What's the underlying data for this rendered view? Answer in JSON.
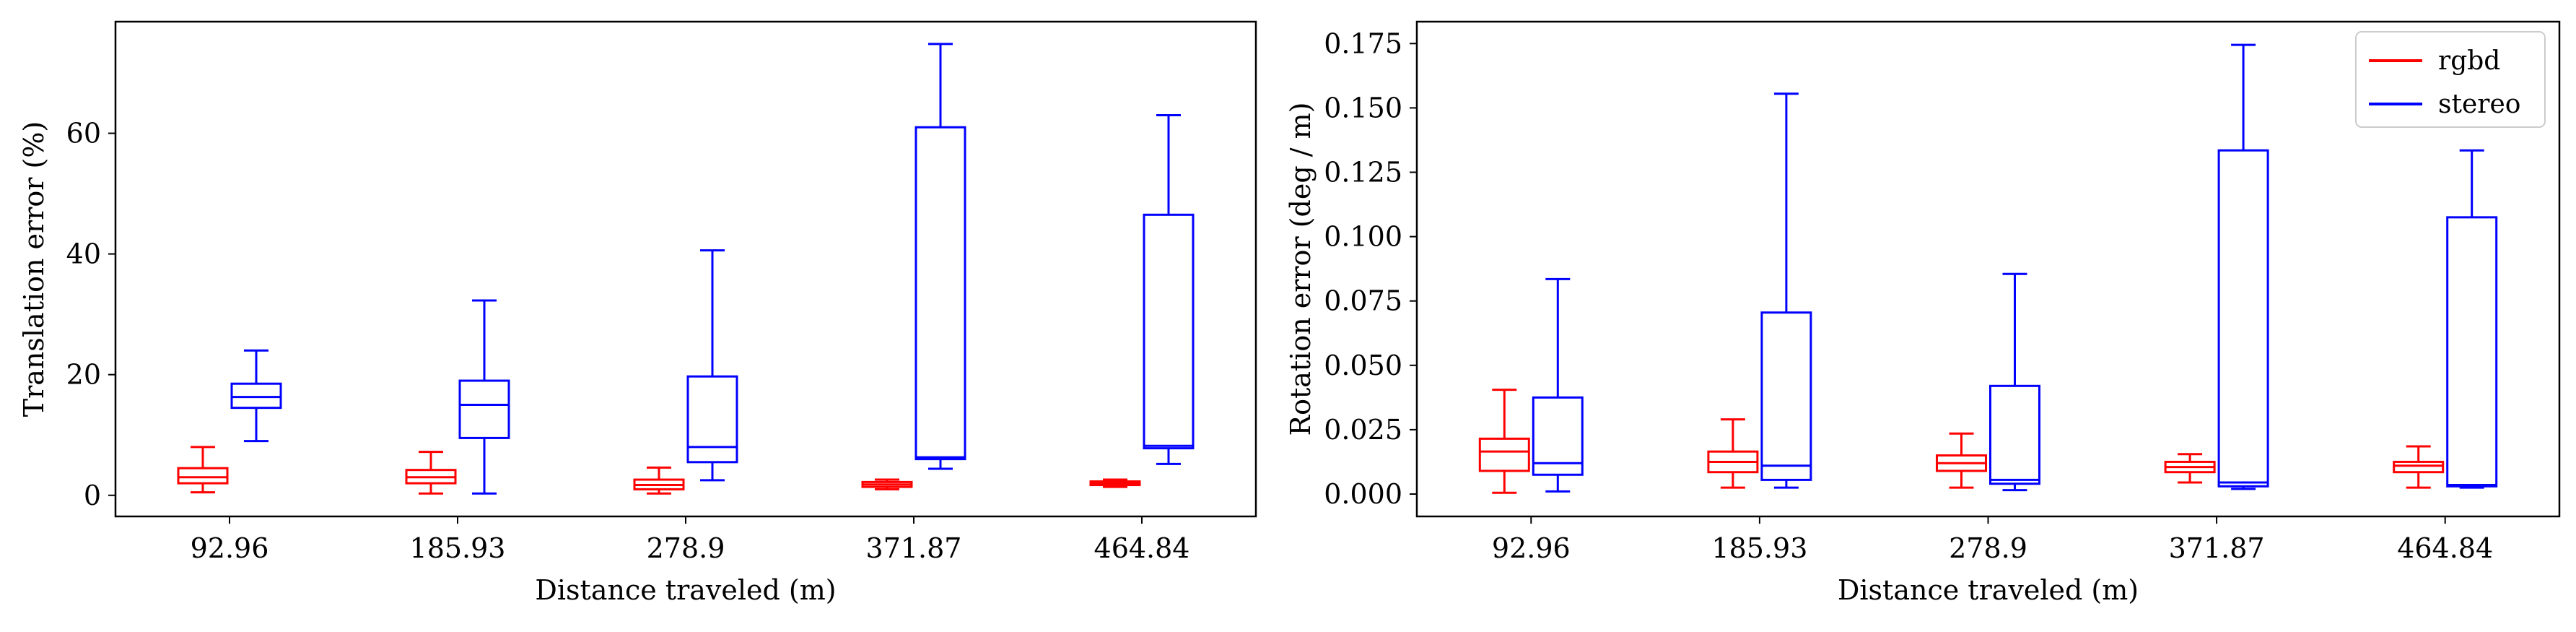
{
  "colors": {
    "rgbd": "#ff0000",
    "stereo": "#0000ff"
  },
  "chart_data": [
    {
      "type": "box",
      "xlabel": "Distance traveled (m)",
      "ylabel": "Translation error (%)",
      "categories": [
        "92.96",
        "185.93",
        "278.9",
        "371.87",
        "464.84"
      ],
      "ylim": [
        -3.5,
        78.5
      ],
      "yticks": [
        0,
        20,
        40,
        60
      ],
      "ytick_labels": [
        "0",
        "20",
        "40",
        "60"
      ],
      "grid": false,
      "legend": null,
      "series": [
        {
          "name": "rgbd",
          "color_key": "rgbd",
          "boxes": [
            {
              "whislo": 0.5,
              "q1": 2.0,
              "med": 3.0,
              "q3": 4.5,
              "whishi": 8.0
            },
            {
              "whislo": 0.3,
              "q1": 2.0,
              "med": 3.0,
              "q3": 4.2,
              "whishi": 7.2
            },
            {
              "whislo": 0.3,
              "q1": 1.0,
              "med": 1.7,
              "q3": 2.6,
              "whishi": 4.6
            },
            {
              "whislo": 1.0,
              "q1": 1.4,
              "med": 1.8,
              "q3": 2.2,
              "whishi": 2.6
            },
            {
              "whislo": 1.4,
              "q1": 1.7,
              "med": 2.0,
              "q3": 2.3,
              "whishi": 2.6
            }
          ]
        },
        {
          "name": "stereo",
          "color_key": "stereo",
          "boxes": [
            {
              "whislo": 9.0,
              "q1": 14.5,
              "med": 16.3,
              "q3": 18.5,
              "whishi": 24.0
            },
            {
              "whislo": 0.3,
              "q1": 9.5,
              "med": 15.0,
              "q3": 19.0,
              "whishi": 32.3
            },
            {
              "whislo": 2.5,
              "q1": 5.5,
              "med": 8.0,
              "q3": 19.7,
              "whishi": 40.6
            },
            {
              "whislo": 4.4,
              "q1": 6.0,
              "med": 6.3,
              "q3": 61.0,
              "whishi": 74.8
            },
            {
              "whislo": 5.2,
              "q1": 7.8,
              "med": 8.2,
              "q3": 46.5,
              "whishi": 63.0
            }
          ]
        }
      ]
    },
    {
      "type": "box",
      "xlabel": "Distance traveled (m)",
      "ylabel": "Rotation error (deg / m)",
      "categories": [
        "92.96",
        "185.93",
        "278.9",
        "371.87",
        "464.84"
      ],
      "ylim": [
        -0.0087,
        0.1835
      ],
      "yticks": [
        0,
        0.025,
        0.05,
        0.075,
        0.1,
        0.125,
        0.15,
        0.175
      ],
      "ytick_labels": [
        "0.000",
        "0.025",
        "0.050",
        "0.075",
        "0.100",
        "0.125",
        "0.150",
        "0.175"
      ],
      "grid": false,
      "legend": "top-right",
      "series": [
        {
          "name": "rgbd",
          "color_key": "rgbd",
          "boxes": [
            {
              "whislo": 0.0005,
              "q1": 0.009,
              "med": 0.0165,
              "q3": 0.0215,
              "whishi": 0.0405
            },
            {
              "whislo": 0.0025,
              "q1": 0.0085,
              "med": 0.0125,
              "q3": 0.0165,
              "whishi": 0.029
            },
            {
              "whislo": 0.0025,
              "q1": 0.009,
              "med": 0.012,
              "q3": 0.015,
              "whishi": 0.0235
            },
            {
              "whislo": 0.0045,
              "q1": 0.0085,
              "med": 0.0105,
              "q3": 0.0125,
              "whishi": 0.0155
            },
            {
              "whislo": 0.0025,
              "q1": 0.0085,
              "med": 0.011,
              "q3": 0.0125,
              "whishi": 0.0185
            }
          ]
        },
        {
          "name": "stereo",
          "color_key": "stereo",
          "boxes": [
            {
              "whislo": 0.001,
              "q1": 0.0075,
              "med": 0.012,
              "q3": 0.0375,
              "whishi": 0.0835
            },
            {
              "whislo": 0.0025,
              "q1": 0.0055,
              "med": 0.011,
              "q3": 0.0705,
              "whishi": 0.1555
            },
            {
              "whislo": 0.0015,
              "q1": 0.004,
              "med": 0.0055,
              "q3": 0.042,
              "whishi": 0.0855
            },
            {
              "whislo": 0.002,
              "q1": 0.003,
              "med": 0.0045,
              "q3": 0.1335,
              "whishi": 0.1745
            },
            {
              "whislo": 0.0025,
              "q1": 0.003,
              "med": 0.0035,
              "q3": 0.1075,
              "whishi": 0.1335
            }
          ]
        }
      ]
    }
  ]
}
